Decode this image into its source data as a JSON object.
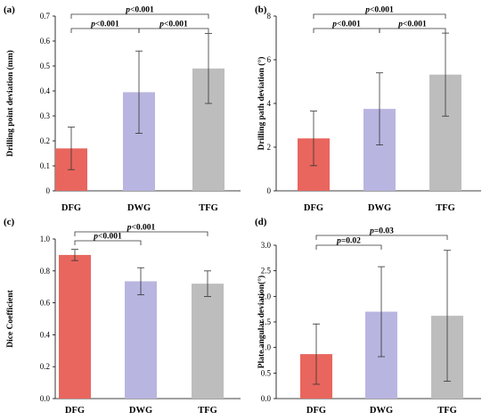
{
  "colors": {
    "DFG": "#e8665e",
    "DWG": "#b8b5e0",
    "TFG": "#bdbdbd"
  },
  "chart_data": [
    {
      "type": "bar",
      "panel": "(a)",
      "categories": [
        "DFG",
        "DWG",
        "TFG"
      ],
      "values": [
        0.17,
        0.395,
        0.49
      ],
      "errors": [
        0.085,
        0.165,
        0.14
      ],
      "ylabel": "Drilling point deviation (mm)",
      "ylim": [
        0,
        0.7
      ],
      "yticks": [
        0,
        0.1,
        0.2,
        0.3,
        0.4,
        0.5,
        0.6,
        0.7
      ],
      "ytick_labels": [
        "0",
        "0.1",
        "0.2",
        "0.3",
        "0.4",
        "0.5",
        "0.6",
        "0.7"
      ],
      "comparisons": [
        {
          "from": 0,
          "to": 2,
          "label": "p<0.001"
        },
        {
          "from": 0,
          "to": 1,
          "label": "p<0.001"
        },
        {
          "from": 1,
          "to": 2,
          "label": "p<0.001"
        }
      ]
    },
    {
      "type": "bar",
      "panel": "(b)",
      "categories": [
        "DFG",
        "DWG",
        "TFG"
      ],
      "values": [
        2.4,
        3.75,
        5.32
      ],
      "errors": [
        1.25,
        1.65,
        1.9
      ],
      "ylabel": "Drilling path deviation (°)",
      "ylim": [
        0,
        8
      ],
      "yticks": [
        0,
        2,
        4,
        6,
        8
      ],
      "ytick_labels": [
        "0",
        "2",
        "4",
        "6",
        "8"
      ],
      "comparisons": [
        {
          "from": 0,
          "to": 2,
          "label": "p<0.001"
        },
        {
          "from": 0,
          "to": 1,
          "label": "p<0.001"
        },
        {
          "from": 1,
          "to": 2,
          "label": "p<0.001"
        }
      ]
    },
    {
      "type": "bar",
      "panel": "(c)",
      "categories": [
        "DFG",
        "DWG",
        "TFG"
      ],
      "values": [
        0.9,
        0.735,
        0.72
      ],
      "errors": [
        0.035,
        0.085,
        0.08
      ],
      "ylabel": "Dice Coefficient",
      "ylim": [
        0,
        1.0
      ],
      "yticks": [
        0,
        0.2,
        0.4,
        0.6,
        0.8,
        1.0
      ],
      "ytick_labels": [
        "0.0",
        "0.2",
        "0.4",
        "0.6",
        "0.8",
        "1.0"
      ],
      "comparisons": [
        {
          "from": 0,
          "to": 2,
          "label": "p<0.001"
        },
        {
          "from": 0,
          "to": 1,
          "label": "p<0.001"
        }
      ]
    },
    {
      "type": "bar",
      "panel": "(d)",
      "categories": [
        "DFG",
        "DWG",
        "TFG"
      ],
      "values": [
        0.87,
        1.7,
        1.62
      ],
      "errors": [
        0.59,
        0.88,
        1.28
      ],
      "ylabel": "Plate angular deviation(°)",
      "ylim": [
        0,
        3.0
      ],
      "yticks": [
        0,
        0.5,
        1.0,
        1.5,
        2.0,
        2.5,
        3.0
      ],
      "ytick_labels": [
        "0.0",
        "0.5",
        "1.0",
        "1.5",
        "2.0",
        "2.5",
        "3.0"
      ],
      "comparisons": [
        {
          "from": 0,
          "to": 2,
          "label": "p=0.03"
        },
        {
          "from": 0,
          "to": 1,
          "label": "p=0.02"
        }
      ]
    }
  ]
}
